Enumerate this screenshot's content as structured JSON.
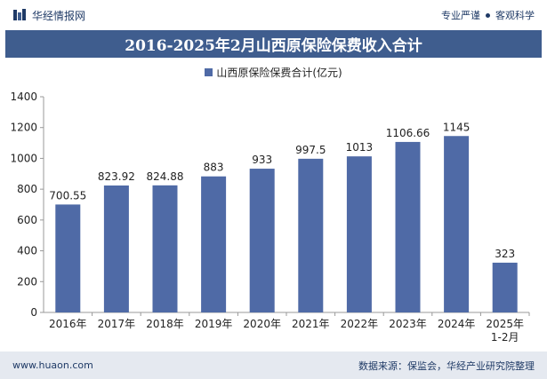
{
  "header": {
    "brand_name": "华经情报网",
    "tagline_left": "专业严谨",
    "tagline_right": "客观科学"
  },
  "footer": {
    "website": "www.huaon.com",
    "source": "数据来源：保监会，华经产业研究院整理"
  },
  "colors": {
    "bar": "#4f6aa6",
    "title_band": "#3f5d8e",
    "footer_band": "#e5e9f0"
  },
  "chart_data": {
    "type": "bar",
    "title": "2016-2025年2月山西原保险保费收入合计",
    "categories": [
      "2016年",
      "2017年",
      "2018年",
      "2019年",
      "2020年",
      "2021年",
      "2022年",
      "2023年",
      "2024年",
      "2025年\n1-2月"
    ],
    "series": [
      {
        "name": "山西原保险保费合计(亿元)",
        "values": [
          700.55,
          823.92,
          824.88,
          883,
          933,
          997.5,
          1013,
          1106.66,
          1145,
          323
        ],
        "labels": [
          "700.55",
          "823.92",
          "824.88",
          "883",
          "933",
          "997.5",
          "1013",
          "1106.66",
          "1145",
          "323"
        ]
      }
    ],
    "yticks": [
      0,
      200,
      400,
      600,
      800,
      1000,
      1200,
      1400
    ],
    "ylim": [
      0,
      1400
    ],
    "grid": false,
    "legend_position": "top"
  }
}
